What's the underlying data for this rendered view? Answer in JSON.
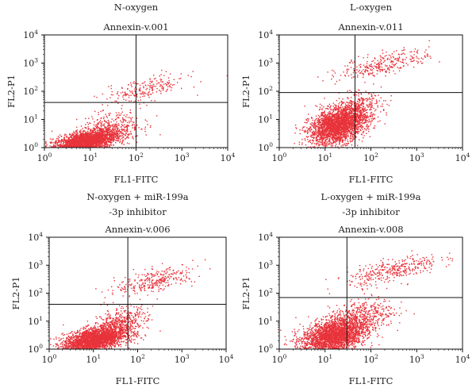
{
  "chart_data": [
    {
      "type": "scatter",
      "title": "N-oxygen",
      "subtitle": "Annexin-v.001",
      "xlabel": "FL1-FITC",
      "ylabel": "FL2-P1",
      "xscale": "log",
      "yscale": "log",
      "xlim": [
        1,
        10000
      ],
      "ylim": [
        1,
        10000
      ],
      "gate": {
        "x": 100,
        "y": 40
      },
      "clusters": [
        {
          "center": [
            7,
            1.6
          ],
          "spread": [
            0.35,
            0.18
          ],
          "count": 2600
        },
        {
          "center": [
            25,
            4
          ],
          "spread": [
            0.35,
            0.3
          ],
          "count": 500
        },
        {
          "center": [
            150,
            120
          ],
          "spread": [
            0.45,
            0.2
          ],
          "count": 220
        }
      ],
      "point_color": "#e8323a"
    },
    {
      "type": "scatter",
      "title": "L-oxygen",
      "subtitle": "Annexin-v.011",
      "xlabel": "FL1-FITC",
      "ylabel": "FL2-P1",
      "xscale": "log",
      "yscale": "log",
      "xlim": [
        1,
        10000
      ],
      "ylim": [
        1,
        10000
      ],
      "gate": {
        "x": 45,
        "y": 90
      },
      "clusters": [
        {
          "center": [
            18,
            6
          ],
          "spread": [
            0.3,
            0.3
          ],
          "count": 2400
        },
        {
          "center": [
            40,
            20
          ],
          "spread": [
            0.3,
            0.3
          ],
          "count": 500
        },
        {
          "center": [
            200,
            1000
          ],
          "spread": [
            0.5,
            0.2
          ],
          "count": 300
        }
      ],
      "point_color": "#e8323a"
    },
    {
      "type": "scatter",
      "title": "N-oxygen + miR-199a",
      "subtitle": "-3p inhibitor",
      "annotation": "Annexin-v.006",
      "xlabel": "FL1-FITC",
      "ylabel": "FL2-P1",
      "xscale": "log",
      "yscale": "log",
      "xlim": [
        1,
        10000
      ],
      "ylim": [
        1,
        10000
      ],
      "gate": {
        "x": 60,
        "y": 40
      },
      "clusters": [
        {
          "center": [
            10,
            2.2
          ],
          "spread": [
            0.35,
            0.22
          ],
          "count": 2600
        },
        {
          "center": [
            40,
            8
          ],
          "spread": [
            0.3,
            0.3
          ],
          "count": 450
        },
        {
          "center": [
            250,
            300
          ],
          "spread": [
            0.45,
            0.2
          ],
          "count": 300
        }
      ],
      "point_color": "#e8323a"
    },
    {
      "type": "scatter",
      "title": "L-oxygen + miR-199a",
      "subtitle": "-3p inhibitor",
      "annotation": "Annexin-v.008",
      "xlabel": "FL1-FITC",
      "ylabel": "FL2-P1",
      "xscale": "log",
      "yscale": "log",
      "xlim": [
        1,
        10000
      ],
      "ylim": [
        1,
        10000
      ],
      "gate": {
        "x": 30,
        "y": 70
      },
      "clusters": [
        {
          "center": [
            15,
            3
          ],
          "spread": [
            0.35,
            0.3
          ],
          "count": 2600
        },
        {
          "center": [
            60,
            15
          ],
          "spread": [
            0.35,
            0.3
          ],
          "count": 450
        },
        {
          "center": [
            300,
            700
          ],
          "spread": [
            0.5,
            0.2
          ],
          "count": 350
        }
      ],
      "point_color": "#e8323a"
    }
  ]
}
